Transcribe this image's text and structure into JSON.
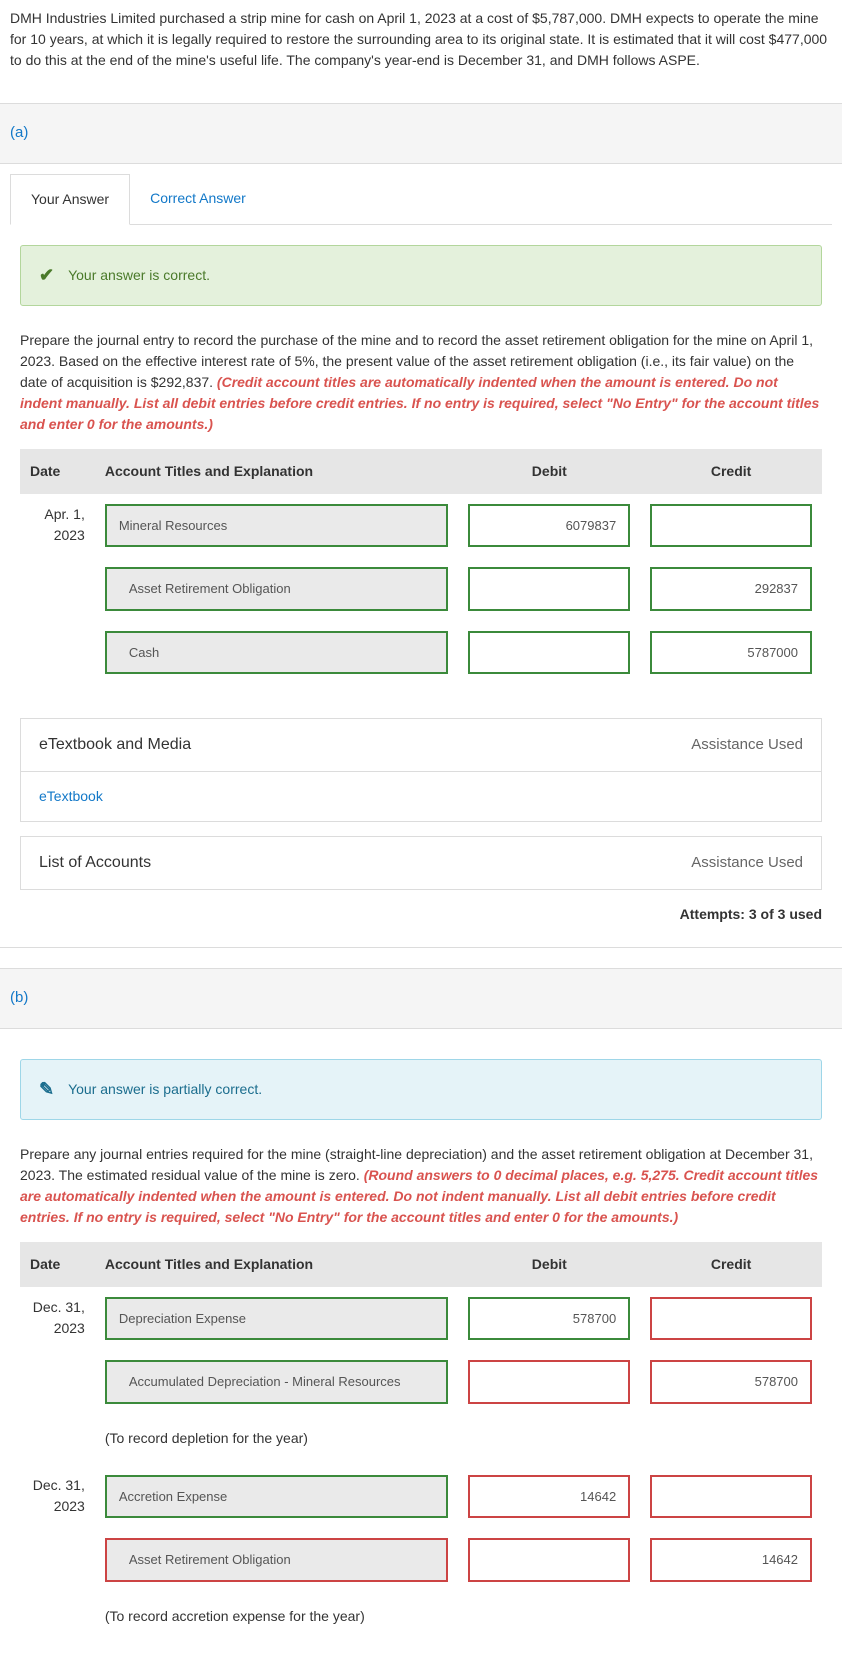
{
  "problem_text": "DMH Industries Limited purchased a strip mine for cash on April 1, 2023 at a cost of $5,787,000. DMH expects to operate the mine for 10 years, at which it is legally required to restore the surrounding area to its original state. It is estimated that it will cost $477,000 to do this at the end of the mine's useful life. The company's year-end is December 31, and DMH follows ASPE.",
  "part_a": {
    "label": "(a)",
    "tabs": {
      "your": "Your Answer",
      "correct": "Correct Answer"
    },
    "feedback": "Your answer is correct.",
    "instructions_plain": "Prepare the journal entry to record the purchase of the mine and to record the asset retirement obligation for the mine on April 1, 2023. Based on the effective interest rate of 5%, the present value of the asset retirement obligation (i.e., its fair value) on the date of acquisition is $292,837. ",
    "instructions_red": "(Credit account titles are automatically indented when the amount is entered. Do not indent manually. List all debit entries before credit entries. If no entry is required, select \"No Entry\" for the account titles and enter 0 for the amounts.)",
    "headers": {
      "date": "Date",
      "acct": "Account Titles and Explanation",
      "debit": "Debit",
      "credit": "Credit"
    },
    "rows": [
      {
        "date": "Apr. 1, 2023",
        "acct": "Mineral Resources",
        "indent": false,
        "debit": "6079837",
        "credit": ""
      },
      {
        "date": "",
        "acct": "Asset Retirement Obligation",
        "indent": true,
        "debit": "",
        "credit": "292837"
      },
      {
        "date": "",
        "acct": "Cash",
        "indent": true,
        "debit": "",
        "credit": "5787000"
      }
    ],
    "etextbook_media": "eTextbook and Media",
    "etextbook_link": "eTextbook",
    "list_accounts": "List of Accounts",
    "assist_used": "Assistance Used",
    "attempts": "Attempts: 3 of 3 used"
  },
  "part_b": {
    "label": "(b)",
    "feedback": "Your answer is partially correct.",
    "instructions_plain": "Prepare any journal entries required for the mine (straight-line depreciation) and the asset retirement obligation at December 31, 2023. The estimated residual value of the mine is zero. ",
    "instructions_red": "(Round answers to 0 decimal places, e.g. 5,275. Credit account titles are automatically indented when the amount is entered. Do not indent manually. List all debit entries before credit entries. If no entry is required, select \"No Entry\" for the account titles and enter 0 for the amounts.)",
    "headers": {
      "date": "Date",
      "acct": "Account Titles and Explanation",
      "debit": "Debit",
      "credit": "Credit"
    },
    "rows": [
      {
        "date": "Dec. 31, 2023",
        "acct": "Depreciation Expense",
        "indent": false,
        "debit": "578700",
        "credit": "",
        "acct_c": "green",
        "d_c": "green",
        "c_c": "red"
      },
      {
        "date": "",
        "acct": "Accumulated Depreciation - Mineral Resources",
        "indent": true,
        "debit": "",
        "credit": "578700",
        "acct_c": "green",
        "d_c": "red",
        "c_c": "red"
      },
      {
        "note": "(To record depletion for the year)"
      },
      {
        "date": "Dec. 31, 2023",
        "acct": "Accretion Expense",
        "indent": false,
        "debit": "14642",
        "credit": "",
        "acct_c": "green",
        "d_c": "red",
        "c_c": "red"
      },
      {
        "date": "",
        "acct": "Asset Retirement Obligation",
        "indent": true,
        "debit": "",
        "credit": "14642",
        "acct_c": "red",
        "d_c": "red",
        "c_c": "red"
      },
      {
        "note": "(To record accretion expense for the year)"
      }
    ]
  },
  "colors": {
    "link": "#1278c8",
    "correct_bg": "#e4f1dc",
    "partial_bg": "#e5f3f8",
    "green_border": "#3b8a3b",
    "red_border": "#c44"
  }
}
